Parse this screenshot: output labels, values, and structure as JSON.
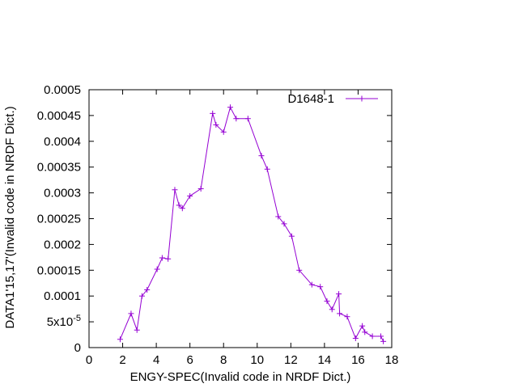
{
  "chart_data": {
    "type": "line",
    "xlabel": "ENGY-SPEC(Invalid code in NRDF Dict.)",
    "ylabel": "DATA1'15,17'(Invalid code in NRDF Dict.)",
    "xlim": [
      0,
      18
    ],
    "ylim": [
      0,
      0.0005
    ],
    "x_ticks": [
      "0",
      "2",
      "4",
      "6",
      "8",
      "10",
      "12",
      "14",
      "16",
      "18"
    ],
    "y_ticks": [
      "0",
      "",
      "0.0001",
      "0.00015",
      "0.0002",
      "0.00025",
      "0.0003",
      "0.00035",
      "0.0004",
      "0.00045",
      "0.0005"
    ],
    "y_tick_special": {
      "base": "5x10",
      "exp": "-5"
    },
    "grid": false,
    "legend_position": "top-right",
    "colors": {
      "series": "#9400d3",
      "axes": "#000000"
    },
    "series": [
      {
        "name": "D1648-1",
        "x": [
          1.85,
          2.5,
          2.85,
          3.15,
          3.45,
          4.05,
          4.35,
          4.7,
          5.1,
          5.35,
          5.55,
          6.0,
          6.65,
          7.35,
          7.55,
          8.0,
          8.4,
          8.75,
          9.45,
          10.25,
          10.6,
          11.25,
          11.6,
          12.05,
          12.5,
          13.25,
          13.75,
          14.15,
          14.45,
          14.85,
          14.9,
          15.35,
          15.85,
          16.25,
          16.4,
          16.85,
          17.35,
          17.5
        ],
        "y": [
          1.6e-05,
          6.6e-05,
          3.4e-05,
          0.0001,
          0.000112,
          0.000152,
          0.000174,
          0.000172,
          0.000306,
          0.000276,
          0.00027,
          0.000294,
          0.000308,
          0.000454,
          0.000432,
          0.000418,
          0.000466,
          0.000444,
          0.000444,
          0.000372,
          0.000346,
          0.000254,
          0.00024,
          0.000216,
          0.00015,
          0.000122,
          0.000118,
          9e-05,
          7.4e-05,
          0.000104,
          6.6e-05,
          6e-05,
          1.8e-05,
          4.2e-05,
          3e-05,
          2.2e-05,
          2.2e-05,
          1.2e-05
        ]
      }
    ]
  }
}
